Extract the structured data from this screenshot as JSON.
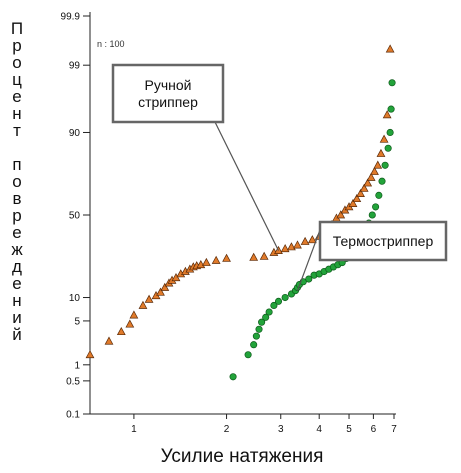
{
  "chart_data": {
    "type": "scatter",
    "title": "",
    "xlabel": "Усилие натяжения",
    "ylabel": "Процент повреждений",
    "x_scale": "log",
    "y_scale": "probability",
    "xlim": [
      0.72,
      7.0
    ],
    "ylim": [
      0.1,
      99.9
    ],
    "x_ticks": [
      "1",
      "2",
      "3",
      "4",
      "5",
      "6",
      "7"
    ],
    "y_ticks": [
      "0.1",
      "0.5",
      "1",
      "5",
      "10",
      "50",
      "90",
      "99",
      "99.9"
    ],
    "annotation": "n : 100",
    "grid": false,
    "series": [
      {
        "name": "Ручной стриппер",
        "color": "#e07a2a",
        "marker": "triangle",
        "x": [
          0.72,
          0.83,
          0.91,
          0.97,
          1.0,
          1.07,
          1.12,
          1.18,
          1.22,
          1.26,
          1.3,
          1.33,
          1.37,
          1.42,
          1.47,
          1.52,
          1.56,
          1.6,
          1.65,
          1.72,
          1.85,
          2.0,
          2.45,
          2.65,
          2.85,
          2.95,
          3.1,
          3.25,
          3.4,
          3.6,
          3.8,
          4.0,
          4.2,
          4.4,
          4.55,
          4.7,
          4.85,
          5.0,
          5.15,
          5.3,
          5.45,
          5.6,
          5.75,
          5.9,
          6.05,
          6.2,
          6.35,
          6.5,
          6.65,
          6.8
        ],
        "y": [
          1.5,
          2.5,
          3.5,
          4.5,
          6.0,
          8.0,
          9.5,
          10.5,
          11.5,
          13.0,
          14.5,
          15.5,
          16.5,
          18.0,
          19.0,
          20.0,
          21.0,
          21.5,
          22.0,
          23.0,
          24.0,
          25.0,
          25.5,
          26.0,
          28.0,
          29.0,
          30.0,
          31.0,
          32.0,
          34.0,
          35.0,
          37.0,
          40.0,
          44.0,
          48.0,
          50.0,
          53.0,
          55.0,
          57.0,
          60.0,
          63.0,
          66.0,
          69.0,
          72.0,
          75.0,
          78.0,
          83.0,
          88.0,
          94.0,
          99.5
        ]
      },
      {
        "name": "Термостриппер",
        "color": "#22a33a",
        "marker": "circle",
        "x": [
          2.1,
          2.35,
          2.45,
          2.5,
          2.55,
          2.6,
          2.68,
          2.75,
          2.85,
          2.95,
          3.1,
          3.25,
          3.35,
          3.4,
          3.45,
          3.55,
          3.7,
          3.85,
          4.0,
          4.15,
          4.3,
          4.45,
          4.6,
          4.75,
          4.9,
          5.05,
          5.2,
          5.35,
          5.5,
          5.65,
          5.8,
          5.95,
          6.1,
          6.25,
          6.4,
          6.55,
          6.7,
          6.8,
          6.85,
          6.9
        ],
        "y": [
          0.6,
          1.5,
          2.2,
          3.0,
          3.8,
          4.8,
          5.6,
          6.6,
          8.0,
          9.0,
          10.0,
          11.0,
          12.0,
          13.0,
          14.0,
          15.0,
          16.0,
          17.5,
          18.0,
          19.0,
          20.0,
          21.0,
          22.0,
          23.0,
          25.0,
          27.0,
          30.0,
          33.0,
          36.0,
          40.0,
          45.0,
          50.0,
          55.0,
          62.0,
          70.0,
          78.0,
          85.0,
          90.0,
          95.0,
          98.0
        ]
      }
    ],
    "callouts": [
      {
        "text_lines": [
          "Ручной",
          "стриппер"
        ],
        "target_x": 2.95,
        "target_y": 29.0
      },
      {
        "text_lines": [
          "Термостриппер"
        ],
        "target_x": 3.4,
        "target_y": 12.0
      }
    ]
  }
}
